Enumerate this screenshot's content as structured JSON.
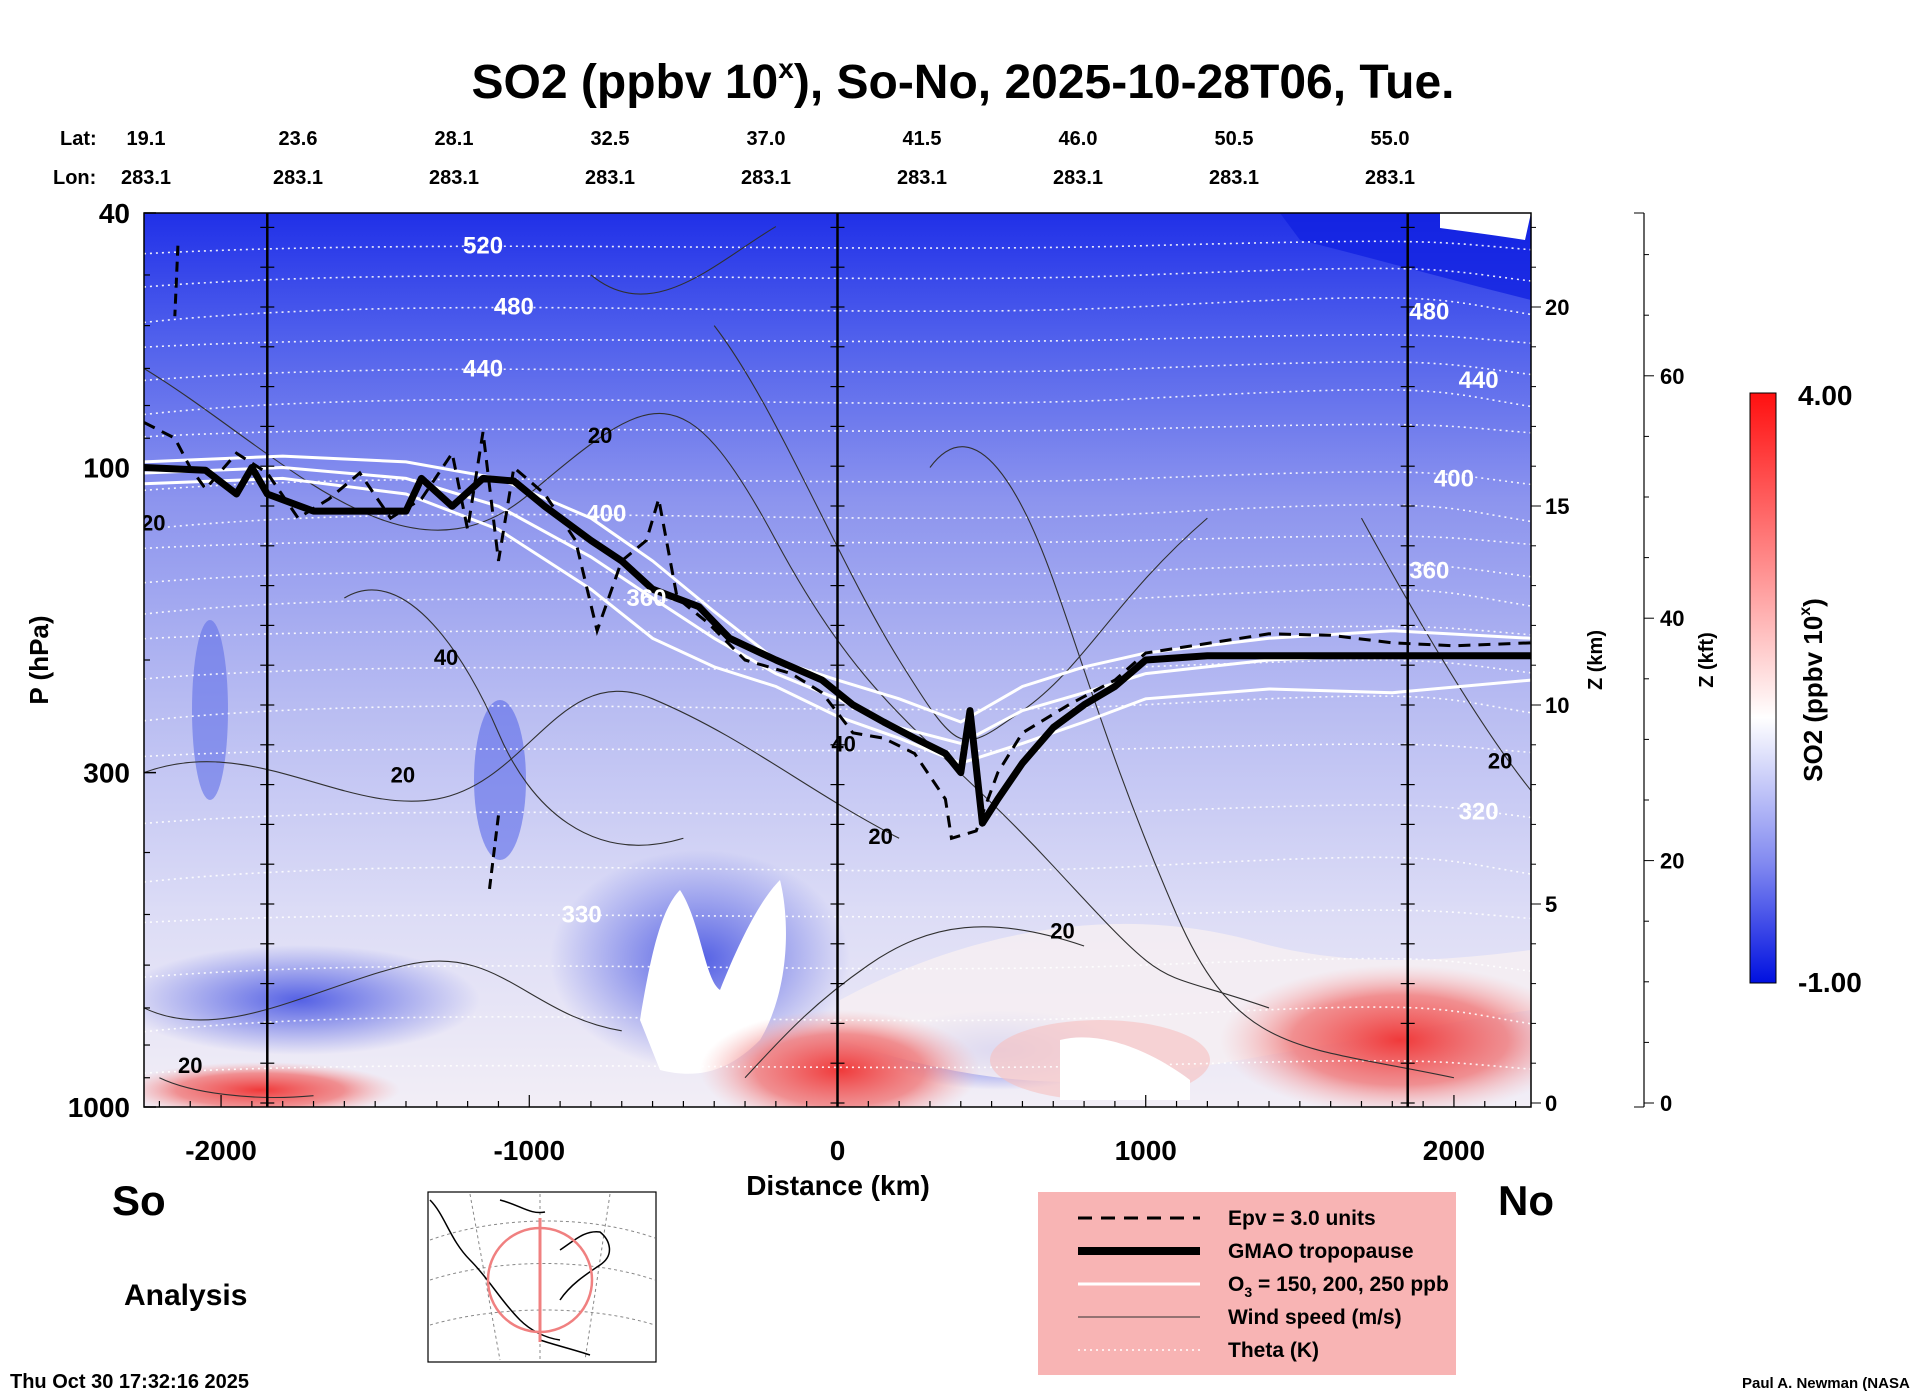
{
  "figure": {
    "title_main": "SO2 (ppbv 10",
    "title_sup": "x",
    "title_rest": "), So-No, 2025-10-28T06, Tue.",
    "lat_label": "Lat:",
    "lon_label": "Lon:",
    "south_label": "So",
    "north_label": "No",
    "mode_label": "Analysis",
    "timestamp": "Thu Oct 30 17:32:16 2025",
    "credit": "Paul A. Newman (NASA"
  },
  "stations": [
    {
      "lat": "19.1",
      "lon": "283.1"
    },
    {
      "lat": "23.6",
      "lon": "283.1"
    },
    {
      "lat": "28.1",
      "lon": "283.1"
    },
    {
      "lat": "32.5",
      "lon": "283.1"
    },
    {
      "lat": "37.0",
      "lon": "283.1"
    },
    {
      "lat": "41.5",
      "lon": "283.1"
    },
    {
      "lat": "46.0",
      "lon": "283.1"
    },
    {
      "lat": "50.5",
      "lon": "283.1"
    },
    {
      "lat": "55.0",
      "lon": "283.1"
    }
  ],
  "chart_data": {
    "type": "heatmap",
    "xlabel": "Distance (km)",
    "ylabel": "P (hPa)",
    "xlim": [
      -2250,
      2250
    ],
    "ylim": [
      1000,
      40
    ],
    "yscale": "log",
    "x_ticks": [
      -2000,
      -1000,
      0,
      1000,
      2000
    ],
    "y_ticks": [
      40,
      100,
      300,
      1000
    ],
    "z_km_label": "Z (km)",
    "z_km_ticks": [
      0,
      5,
      10,
      15,
      20
    ],
    "z_kft_label": "Z (kft)",
    "z_kft_ticks": [
      0,
      20,
      40,
      60
    ],
    "vertical_markers_km": [
      -1850,
      0,
      1850
    ],
    "colorbar": {
      "label": "SO2 (ppbv 10",
      "label_sup": "x",
      "label_end": ")",
      "min": -1.0,
      "max": 4.0,
      "min_label": "-1.00",
      "max_label": "4.00",
      "colors": [
        "#0010e0",
        "#ffffff",
        "#ff1010"
      ]
    },
    "theta_labels": [
      {
        "text": "520",
        "x": -1150,
        "p": 45
      },
      {
        "text": "480",
        "x": -1050,
        "p": 56
      },
      {
        "text": "440",
        "x": -1150,
        "p": 70
      },
      {
        "text": "400",
        "x": -750,
        "p": 118
      },
      {
        "text": "360",
        "x": -620,
        "p": 160
      },
      {
        "text": "480",
        "x": 1920,
        "p": 57
      },
      {
        "text": "440",
        "x": 2080,
        "p": 73
      },
      {
        "text": "400",
        "x": 2000,
        "p": 104
      },
      {
        "text": "360",
        "x": 1920,
        "p": 145
      },
      {
        "text": "320",
        "x": 2080,
        "p": 345
      },
      {
        "text": "330",
        "x": -830,
        "p": 500
      }
    ],
    "wind_labels": [
      {
        "text": "20",
        "x": -770,
        "p": 89
      },
      {
        "text": "20",
        "x": -2220,
        "p": 122
      },
      {
        "text": "40",
        "x": -1270,
        "p": 198
      },
      {
        "text": "20",
        "x": -1410,
        "p": 302
      },
      {
        "text": "40",
        "x": 20,
        "p": 270
      },
      {
        "text": "20",
        "x": 140,
        "p": 377
      },
      {
        "text": "20",
        "x": 730,
        "p": 530
      },
      {
        "text": "20",
        "x": 2150,
        "p": 287
      },
      {
        "text": "20",
        "x": -2100,
        "p": 860
      }
    ],
    "legend": [
      {
        "label": "Epv = 3.0 units",
        "style": "dashed"
      },
      {
        "label": "GMAO tropopause",
        "style": "thick"
      },
      {
        "label": "O",
        "sub": "3",
        "rest": " = 150, 200, 250 ppb",
        "style": "white"
      },
      {
        "label": "Wind speed (m/s)",
        "style": "thin"
      },
      {
        "label": "Theta (K)",
        "style": "dotted"
      }
    ]
  }
}
